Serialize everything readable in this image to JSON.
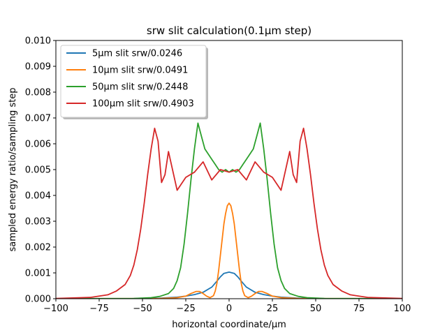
{
  "chart_data": {
    "type": "line",
    "title": "srw slit calculation(0.1μm step)",
    "xlabel": "horizontal coordinate/μm",
    "ylabel": "sampled energy ratio/sampling step",
    "xlim": [
      -100,
      100
    ],
    "ylim": [
      0,
      0.01
    ],
    "xticks": [
      "−100",
      "−75",
      "−50",
      "−25",
      "0",
      "25",
      "50",
      "75",
      "100"
    ],
    "yticks": [
      "0.000",
      "0.001",
      "0.002",
      "0.003",
      "0.004",
      "0.005",
      "0.006",
      "0.007",
      "0.008",
      "0.009",
      "0.010"
    ],
    "grid": false,
    "legend_position": "upper-left",
    "series": [
      {
        "name": "5μm slit srw/0.0246",
        "color": "#1f77b4",
        "x": [
          -100,
          -60,
          -40,
          -30,
          -25,
          -20,
          -15,
          -10,
          -7,
          -5,
          -3,
          0,
          3,
          5,
          7,
          10,
          15,
          20,
          25,
          30,
          40,
          60,
          100
        ],
        "y": [
          0.0,
          0.0,
          2e-05,
          6e-05,
          0.0001,
          0.00016,
          0.00025,
          0.00045,
          0.00068,
          0.00085,
          0.00098,
          0.00103,
          0.00098,
          0.00085,
          0.00068,
          0.00045,
          0.00025,
          0.00016,
          0.0001,
          6e-05,
          2e-05,
          0.0,
          0.0
        ]
      },
      {
        "name": "10μm slit srw/0.0491",
        "color": "#ff7f0e",
        "x": [
          -100,
          -40,
          -30,
          -25,
          -22,
          -19,
          -17,
          -15,
          -13,
          -11,
          -9,
          -8,
          -7,
          -6,
          -5,
          -4,
          -3,
          -2,
          -1,
          0,
          1,
          2,
          3,
          4,
          5,
          6,
          7,
          8,
          9,
          11,
          13,
          15,
          17,
          19,
          22,
          25,
          30,
          40,
          100
        ],
        "y": [
          0.0,
          1e-05,
          4e-05,
          0.0001,
          0.0002,
          0.00028,
          0.00028,
          0.0002,
          0.0001,
          4e-05,
          0.00012,
          0.0003,
          0.0006,
          0.0011,
          0.0017,
          0.0023,
          0.0029,
          0.0033,
          0.0036,
          0.0037,
          0.0036,
          0.0033,
          0.0029,
          0.0023,
          0.0017,
          0.0011,
          0.0006,
          0.0003,
          0.00012,
          4e-05,
          0.0001,
          0.0002,
          0.00028,
          0.00028,
          0.0002,
          0.0001,
          4e-05,
          1e-05,
          0.0
        ]
      },
      {
        "name": "50μm slit srw/0.2448",
        "color": "#2ca02c",
        "x": [
          -100,
          -55,
          -45,
          -40,
          -35,
          -32,
          -30,
          -28,
          -26,
          -24,
          -22,
          -20,
          -18,
          -16,
          -14,
          -12,
          -10,
          -8,
          -6,
          -4,
          -2,
          0,
          2,
          4,
          6,
          8,
          10,
          12,
          14,
          16,
          18,
          20,
          22,
          24,
          26,
          28,
          30,
          32,
          35,
          40,
          45,
          55,
          100
        ],
        "y": [
          0.0,
          1e-05,
          4e-05,
          9e-05,
          0.0002,
          0.0004,
          0.0007,
          0.0012,
          0.0021,
          0.0033,
          0.0046,
          0.0058,
          0.0068,
          0.0063,
          0.0058,
          0.0056,
          0.0054,
          0.0052,
          0.005,
          0.0049,
          0.005,
          0.0049,
          0.005,
          0.0049,
          0.005,
          0.0052,
          0.0054,
          0.0056,
          0.0058,
          0.0063,
          0.0068,
          0.0058,
          0.0046,
          0.0033,
          0.0021,
          0.0012,
          0.0007,
          0.0004,
          0.0002,
          9e-05,
          4e-05,
          1e-05,
          0.0
        ]
      },
      {
        "name": "100μm slit srw/0.4903",
        "color": "#d62728",
        "x": [
          -100,
          -80,
          -70,
          -65,
          -60,
          -57,
          -55,
          -53,
          -51,
          -49,
          -47,
          -45,
          -43,
          -41,
          -39,
          -37,
          -35,
          -30,
          -25,
          -20,
          -15,
          -10,
          -5,
          0,
          5,
          10,
          15,
          20,
          25,
          30,
          35,
          37,
          39,
          41,
          43,
          45,
          47,
          49,
          51,
          53,
          55,
          57,
          60,
          65,
          70,
          80,
          100
        ],
        "y": [
          1e-05,
          5e-05,
          0.00015,
          0.0003,
          0.00055,
          0.0009,
          0.0013,
          0.0019,
          0.0027,
          0.0037,
          0.0048,
          0.0058,
          0.0066,
          0.0061,
          0.0045,
          0.0048,
          0.0057,
          0.0042,
          0.0047,
          0.0049,
          0.0053,
          0.0046,
          0.005,
          0.0049,
          0.005,
          0.0046,
          0.0053,
          0.0049,
          0.0047,
          0.0042,
          0.0057,
          0.0048,
          0.0045,
          0.0061,
          0.0066,
          0.0058,
          0.0048,
          0.0037,
          0.0027,
          0.0019,
          0.0013,
          0.0009,
          0.00055,
          0.0003,
          0.00015,
          5e-05,
          1e-05
        ]
      }
    ]
  }
}
